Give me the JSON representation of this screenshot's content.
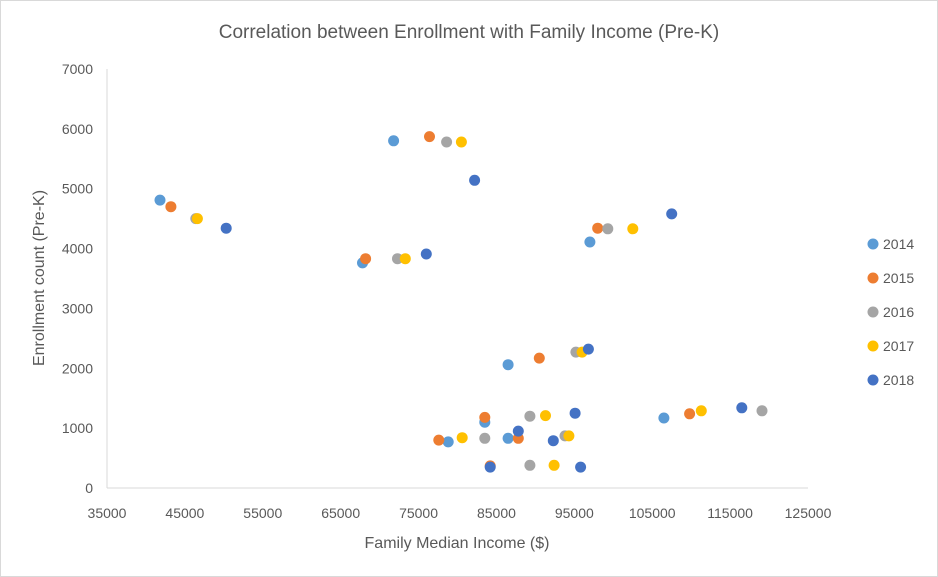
{
  "chart_data": {
    "type": "scatter",
    "title": "Correlation between Enrollment with Family Income (Pre-K)",
    "xlabel": "Family Median Income ($)",
    "ylabel": "Enrollment count (Pre-K)",
    "xlim": [
      35000,
      125000
    ],
    "ylim": [
      0,
      7000
    ],
    "x_ticks": [
      "35000",
      "45000",
      "55000",
      "65000",
      "75000",
      "85000",
      "95000",
      "105000",
      "115000",
      "125000"
    ],
    "y_ticks": [
      "0",
      "1000",
      "2000",
      "3000",
      "4000",
      "5000",
      "6000",
      "7000"
    ],
    "grid": false,
    "legend_position": "right",
    "series": [
      {
        "name": "2014",
        "color": "#5B9BD5",
        "points": [
          [
            41800,
            4810
          ],
          [
            67800,
            3760
          ],
          [
            71800,
            5800
          ],
          [
            78800,
            770
          ],
          [
            83500,
            1100
          ],
          [
            86500,
            2060
          ],
          [
            86500,
            830
          ],
          [
            97000,
            4110
          ],
          [
            106500,
            1170
          ]
        ]
      },
      {
        "name": "2015",
        "color": "#ED7D31",
        "points": [
          [
            43200,
            4700
          ],
          [
            68200,
            3830
          ],
          [
            76400,
            5870
          ],
          [
            77600,
            800
          ],
          [
            83500,
            1180
          ],
          [
            84200,
            370
          ],
          [
            87800,
            830
          ],
          [
            90500,
            2170
          ],
          [
            98000,
            4340
          ],
          [
            109800,
            1240
          ]
        ]
      },
      {
        "name": "2016",
        "color": "#A5A5A5",
        "points": [
          [
            46400,
            4500
          ],
          [
            72300,
            3830
          ],
          [
            78600,
            5780
          ],
          [
            83500,
            830
          ],
          [
            89300,
            380
          ],
          [
            89300,
            1200
          ],
          [
            93800,
            870
          ],
          [
            95200,
            2270
          ],
          [
            99300,
            4330
          ],
          [
            119100,
            1290
          ]
        ]
      },
      {
        "name": "2017",
        "color": "#FFC000",
        "points": [
          [
            46600,
            4500
          ],
          [
            73300,
            3830
          ],
          [
            80500,
            5780
          ],
          [
            80600,
            840
          ],
          [
            91300,
            1210
          ],
          [
            92400,
            380
          ],
          [
            94300,
            870
          ],
          [
            96000,
            2270
          ],
          [
            102500,
            4330
          ],
          [
            111300,
            1290
          ]
        ]
      },
      {
        "name": "2018",
        "color": "#4472C4",
        "points": [
          [
            50300,
            4340
          ],
          [
            76000,
            3910
          ],
          [
            82200,
            5140
          ],
          [
            84200,
            350
          ],
          [
            87800,
            950
          ],
          [
            92300,
            790
          ],
          [
            95100,
            1250
          ],
          [
            95800,
            350
          ],
          [
            96800,
            2320
          ],
          [
            107500,
            4580
          ],
          [
            116500,
            1340
          ]
        ]
      }
    ]
  }
}
